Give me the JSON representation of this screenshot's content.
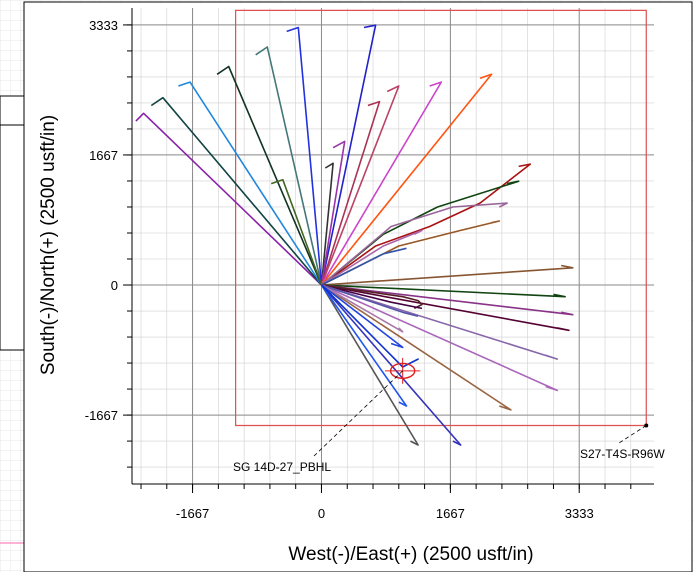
{
  "chart_data": {
    "type": "line",
    "xlabel": "West(-)/East(+) (2500 usft/in)",
    "ylabel": "South(-)/North(+) (2500 usft/in)",
    "xlim": [
      -2450,
      4300
    ],
    "ylim": [
      -2550,
      3550
    ],
    "x_ticks": [
      -1667,
      0,
      1667,
      3333
    ],
    "y_ticks": [
      -1667,
      0,
      1667,
      3333
    ],
    "x_tick_labels": [
      "-1667",
      "0",
      "1667",
      "3333"
    ],
    "y_tick_labels": [
      "-1667",
      "0",
      "1667",
      "3333"
    ],
    "grid": true,
    "legend": "none",
    "colors": {
      "grid_major": "#8a8a8a",
      "grid_minor": "#d0d0d0",
      "section_box": "#e05050",
      "target": "#e02020",
      "leader": "#000000"
    },
    "section": {
      "label": "S27-T4S-R96W",
      "corners": [
        [
          -1110,
          3520
        ],
        [
          4200,
          3520
        ],
        [
          4200,
          -1800
        ],
        [
          -1110,
          -1800
        ]
      ],
      "label_anchor": [
        4200,
        -1800
      ]
    },
    "target": {
      "label": "SG 14D-27_PBHL",
      "center": [
        1050,
        -1100
      ],
      "radius": 120
    },
    "wellbore_origin": [
      0,
      0
    ],
    "series": [
      {
        "color": "#8822aa",
        "points": [
          [
            0,
            0
          ],
          [
            -2300,
            2200
          ],
          [
            -2400,
            2100
          ]
        ]
      },
      {
        "color": "#114444",
        "points": [
          [
            0,
            0
          ],
          [
            -2050,
            2400
          ],
          [
            -2200,
            2300
          ]
        ]
      },
      {
        "color": "#2288dd",
        "points": [
          [
            0,
            0
          ],
          [
            -1700,
            2600
          ],
          [
            -1850,
            2550
          ]
        ]
      },
      {
        "color": "#113322",
        "points": [
          [
            0,
            0
          ],
          [
            -1200,
            2800
          ],
          [
            -1350,
            2700
          ]
        ]
      },
      {
        "color": "#447777",
        "points": [
          [
            0,
            0
          ],
          [
            -700,
            3050
          ],
          [
            -850,
            2950
          ]
        ]
      },
      {
        "color": "#2233dd",
        "points": [
          [
            0,
            0
          ],
          [
            -300,
            3300
          ],
          [
            -450,
            3250
          ]
        ]
      },
      {
        "color": "#2222cc",
        "points": [
          [
            0,
            0
          ],
          [
            700,
            3330
          ],
          [
            550,
            3300
          ]
        ]
      },
      {
        "color": "#446622",
        "points": [
          [
            0,
            0
          ],
          [
            -500,
            1350
          ],
          [
            -650,
            1300
          ]
        ]
      },
      {
        "color": "#333333",
        "points": [
          [
            0,
            0
          ],
          [
            150,
            1560
          ],
          [
            50,
            1500
          ]
        ]
      },
      {
        "color": "#9933aa",
        "points": [
          [
            0,
            0
          ],
          [
            300,
            1840
          ],
          [
            150,
            1760
          ]
        ]
      },
      {
        "color": "#aa3355",
        "points": [
          [
            0,
            0
          ],
          [
            750,
            2350
          ],
          [
            600,
            2300
          ]
        ]
      },
      {
        "color": "#bb4466",
        "points": [
          [
            0,
            0
          ],
          [
            1000,
            2550
          ],
          [
            850,
            2480
          ]
        ]
      },
      {
        "color": "#cc44cc",
        "points": [
          [
            0,
            0
          ],
          [
            1550,
            2600
          ],
          [
            1400,
            2550
          ]
        ]
      },
      {
        "color": "#ff5511",
        "points": [
          [
            0,
            0
          ],
          [
            2200,
            2700
          ],
          [
            2050,
            2650
          ]
        ]
      },
      {
        "color": "#aa1111",
        "points": [
          [
            0,
            0
          ],
          [
            700,
            500
          ],
          [
            1400,
            750
          ],
          [
            2050,
            1050
          ],
          [
            2700,
            1550
          ],
          [
            2550,
            1520
          ]
        ]
      },
      {
        "color": "#114411",
        "points": [
          [
            0,
            0
          ],
          [
            800,
            650
          ],
          [
            1500,
            1000
          ],
          [
            2550,
            1330
          ],
          [
            2400,
            1300
          ]
        ]
      },
      {
        "color": "#996699",
        "points": [
          [
            0,
            0
          ],
          [
            900,
            750
          ],
          [
            1700,
            1000
          ],
          [
            2400,
            1050
          ],
          [
            2300,
            1000
          ]
        ]
      },
      {
        "color": "#995522",
        "points": [
          [
            0,
            0
          ],
          [
            1000,
            500
          ],
          [
            1800,
            700
          ],
          [
            2300,
            820
          ],
          [
            2200,
            800
          ]
        ]
      },
      {
        "color": "#aa66aa",
        "points": [
          [
            0,
            0
          ],
          [
            800,
            500
          ],
          [
            1300,
            700
          ],
          [
            1200,
            650
          ]
        ]
      },
      {
        "color": "#3355aa",
        "points": [
          [
            0,
            0
          ],
          [
            800,
            400
          ],
          [
            1100,
            470
          ]
        ]
      },
      {
        "color": "#885533",
        "points": [
          [
            0,
            0
          ],
          [
            3250,
            220
          ],
          [
            3100,
            250
          ]
        ]
      },
      {
        "color": "#114411",
        "points": [
          [
            0,
            0
          ],
          [
            3150,
            -150
          ],
          [
            3000,
            -120
          ]
        ]
      },
      {
        "color": "#883388",
        "points": [
          [
            0,
            0
          ],
          [
            3250,
            -380
          ],
          [
            3100,
            -350
          ]
        ]
      },
      {
        "color": "#550033",
        "points": [
          [
            0,
            0
          ],
          [
            3200,
            -580
          ],
          [
            3050,
            -550
          ]
        ]
      },
      {
        "color": "#552222",
        "points": [
          [
            0,
            0
          ],
          [
            1050,
            -150
          ],
          [
            1250,
            -200
          ],
          [
            1300,
            -250
          ],
          [
            1200,
            -300
          ]
        ]
      },
      {
        "color": "#440044",
        "points": [
          [
            0,
            0
          ],
          [
            900,
            -220
          ],
          [
            1300,
            -300
          ]
        ]
      },
      {
        "color": "#8866aa",
        "points": [
          [
            0,
            0
          ],
          [
            3050,
            -950
          ],
          [
            2900,
            -900
          ]
        ]
      },
      {
        "color": "#aa66bb",
        "points": [
          [
            0,
            0
          ],
          [
            3050,
            -1350
          ],
          [
            2900,
            -1300
          ]
        ]
      },
      {
        "color": "#996644",
        "points": [
          [
            0,
            0
          ],
          [
            2450,
            -1600
          ],
          [
            2300,
            -1550
          ]
        ]
      },
      {
        "color": "#5555aa",
        "points": [
          [
            0,
            0
          ],
          [
            1050,
            -350
          ],
          [
            1250,
            -400
          ]
        ]
      },
      {
        "color": "#aa77aa",
        "points": [
          [
            0,
            0
          ],
          [
            1050,
            -600
          ],
          [
            1000,
            -550
          ]
        ]
      },
      {
        "color": "#2244dd",
        "points": [
          [
            0,
            0
          ],
          [
            1050,
            -800
          ],
          [
            900,
            -750
          ]
        ]
      },
      {
        "color": "#3333bb",
        "points": [
          [
            0,
            0
          ],
          [
            1800,
            -2050
          ],
          [
            1700,
            -2000
          ]
        ]
      },
      {
        "color": "#555555",
        "points": [
          [
            0,
            0
          ],
          [
            1250,
            -2050
          ],
          [
            1150,
            -2000
          ]
        ]
      },
      {
        "color": "#2255ee",
        "points": [
          [
            0,
            0
          ],
          [
            1100,
            -1550
          ],
          [
            1000,
            -1500
          ]
        ]
      },
      {
        "color": "#1133cc",
        "points": [
          [
            0,
            0
          ],
          [
            1050,
            -1050
          ],
          [
            1250,
            -950
          ],
          [
            1150,
            -1000
          ]
        ]
      }
    ]
  }
}
